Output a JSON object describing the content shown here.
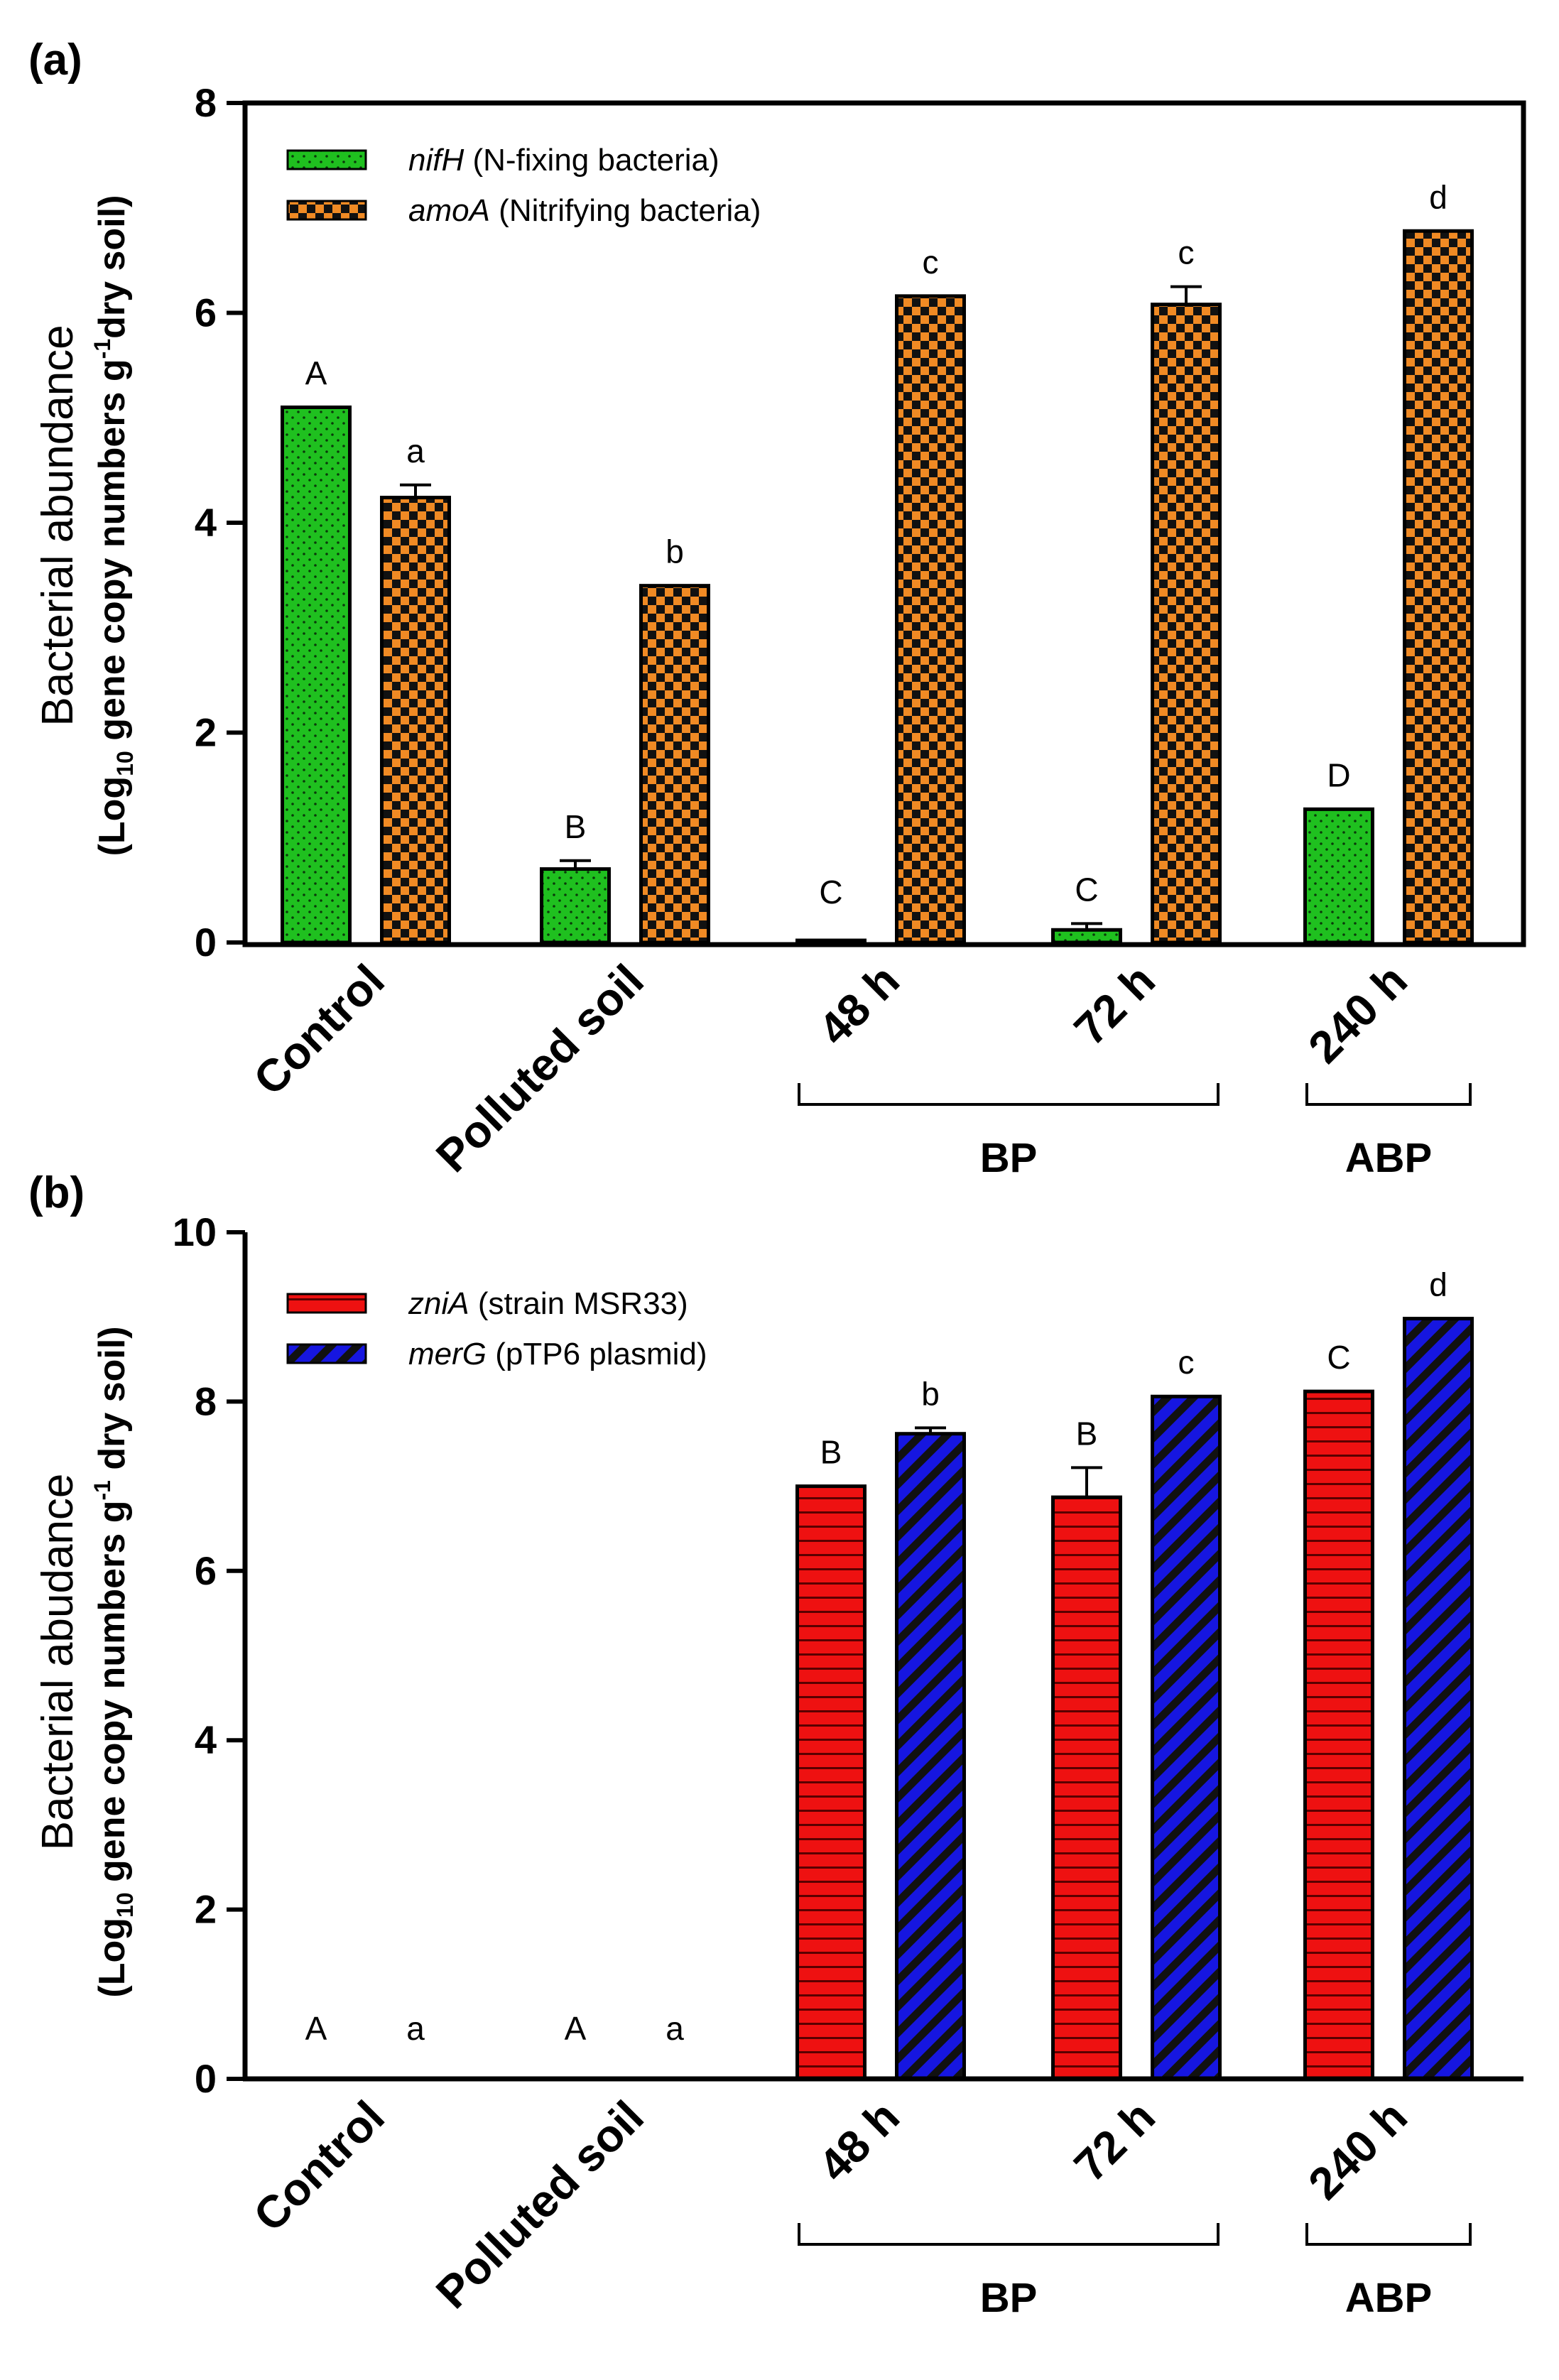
{
  "chart_data": [
    {
      "type": "bar",
      "panel": "(a)",
      "ylabel": "Bacterial abundance",
      "ylabel_units": {
        "prefix": "(Log",
        "sub": "10",
        "mid": " gene copy numbers  g",
        "sup": "-1",
        "suffix": "dry soil)"
      },
      "ylim": [
        0,
        8
      ],
      "yticks": [
        "0",
        "2",
        "4",
        "6",
        "8"
      ],
      "categories": [
        "Control",
        "Polluted soil",
        "48 h",
        "72 h",
        "240 h"
      ],
      "groups": [
        {
          "label": "BP",
          "from": 2,
          "to": 3
        },
        {
          "label": "ABP",
          "from": 4,
          "to": 4
        }
      ],
      "series": [
        {
          "name": "nifH",
          "legend_italic": "nifH",
          "legend_rest": " (N-fixing bacteria)",
          "color": "#1fc01f",
          "pattern": "dots",
          "values": [
            5.1,
            0.7,
            0.02,
            0.12,
            1.27
          ],
          "errors": [
            0,
            0.08,
            0,
            0.06,
            0
          ],
          "letters": [
            "A",
            "B",
            "C",
            "C",
            "D"
          ]
        },
        {
          "name": "amoA",
          "legend_italic": "amoA",
          "legend_rest": " (Nitrifying bacteria)",
          "color": "#f08a24",
          "pattern": "checker",
          "values": [
            4.24,
            3.4,
            6.16,
            6.08,
            6.78
          ],
          "errors": [
            0.12,
            0,
            0,
            0.17,
            0
          ],
          "letters": [
            "a",
            "b",
            "c",
            "c",
            "d"
          ]
        }
      ]
    },
    {
      "type": "bar",
      "panel": "(b)",
      "ylabel": "Bacterial abudance",
      "ylabel_units": {
        "prefix": "(Log",
        "sub": "10",
        "mid": " gene copy numbers g",
        "sup": "-1",
        "suffix": " dry soil)"
      },
      "ylim": [
        0,
        10
      ],
      "yticks": [
        "0",
        "2",
        "4",
        "6",
        "8",
        "10"
      ],
      "categories": [
        "Control",
        "Polluted soil",
        "48 h",
        "72 h",
        "240 h"
      ],
      "groups": [
        {
          "label": "BP",
          "from": 2,
          "to": 3
        },
        {
          "label": "ABP",
          "from": 4,
          "to": 4
        }
      ],
      "series": [
        {
          "name": "zniA",
          "legend_italic": "zniA",
          "legend_rest": " (strain MSR33)",
          "color": "#ee1111",
          "pattern": "hlines",
          "values": [
            0,
            0,
            7.0,
            6.87,
            8.12
          ],
          "errors": [
            0,
            0,
            0,
            0.35,
            0
          ],
          "letters": [
            "A",
            "A",
            "B",
            "B",
            "C"
          ]
        },
        {
          "name": "merG",
          "legend_italic": "merG",
          "legend_rest": " (pTP6 plasmid)",
          "color": "#1616e0",
          "pattern": "diag",
          "values": [
            0,
            0,
            7.62,
            8.06,
            8.98
          ],
          "errors": [
            0,
            0,
            0.07,
            0,
            0
          ],
          "letters": [
            "a",
            "a",
            "b",
            "c",
            "d"
          ]
        }
      ]
    }
  ]
}
